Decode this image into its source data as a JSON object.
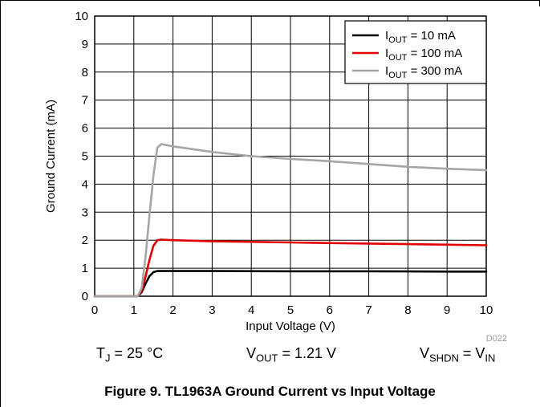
{
  "chart_data": {
    "type": "line",
    "title": "",
    "xlabel": "Input Voltage (V)",
    "ylabel": "Ground Current (mA)",
    "xlim": [
      0,
      10
    ],
    "ylim": [
      0,
      10
    ],
    "xticks": [
      0,
      1,
      2,
      3,
      4,
      5,
      6,
      7,
      8,
      9,
      10
    ],
    "yticks": [
      0,
      1,
      2,
      3,
      4,
      5,
      6,
      7,
      8,
      9,
      10
    ],
    "grid": true,
    "legend_position": "top-right",
    "watermark": "D022",
    "series": [
      {
        "name_main": "I",
        "name_sub": "OUT",
        "name_rest": " = 10 mA",
        "color": "#000000",
        "x": [
          0,
          1.1,
          1.2,
          1.3,
          1.4,
          1.5,
          1.6,
          1.8,
          3,
          5,
          7,
          9,
          10
        ],
        "y": [
          0,
          0,
          0.15,
          0.45,
          0.72,
          0.86,
          0.9,
          0.9,
          0.9,
          0.89,
          0.89,
          0.88,
          0.88
        ]
      },
      {
        "name_main": "I",
        "name_sub": "OUT",
        "name_rest": " = 100 mA",
        "color": "#e00000",
        "x": [
          0,
          1.1,
          1.2,
          1.3,
          1.4,
          1.5,
          1.6,
          1.7,
          2,
          3,
          5,
          7,
          9,
          10
        ],
        "y": [
          0,
          0,
          0.2,
          0.7,
          1.3,
          1.8,
          2.0,
          2.02,
          2.0,
          1.96,
          1.92,
          1.88,
          1.84,
          1.82
        ]
      },
      {
        "name_main": "I",
        "name_sub": "OUT",
        "name_rest": " = 300 mA",
        "color": "#a6a6a6",
        "x": [
          0,
          1.1,
          1.2,
          1.3,
          1.4,
          1.5,
          1.6,
          1.7,
          2,
          3,
          4,
          5,
          6,
          7,
          8,
          9,
          10
        ],
        "y": [
          0,
          0,
          0.3,
          1.4,
          2.9,
          4.3,
          5.3,
          5.43,
          5.35,
          5.15,
          5.0,
          4.9,
          4.82,
          4.72,
          4.62,
          4.55,
          4.5
        ]
      }
    ]
  },
  "conditions": [
    {
      "main": "T",
      "sub": "J",
      "rest": " = 25 °C"
    },
    {
      "main": "V",
      "sub": "OUT",
      "rest": " = 1.21 V"
    },
    {
      "main": "V",
      "sub": "SHDN",
      "rest": " = V",
      "sub2": "IN"
    }
  ],
  "caption": "Figure 9. TL1963A Ground Current vs Input Voltage"
}
